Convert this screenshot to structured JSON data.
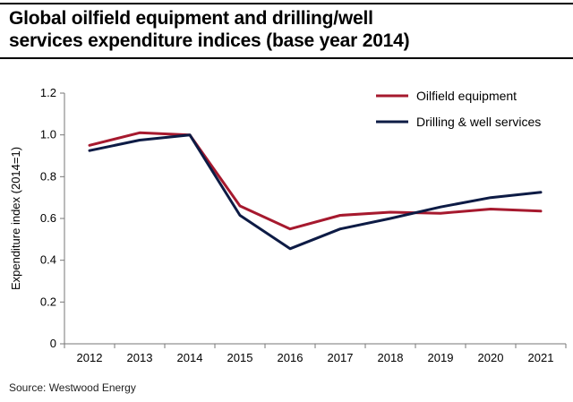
{
  "title": {
    "line1": "Global oilfield equipment and drilling/well",
    "line2": "services expenditure indices (base year 2014)"
  },
  "source": "Source: Westwood Energy",
  "colors": {
    "oilfield": "#a6192e",
    "drilling": "#0d1b45",
    "axis": "#777777"
  },
  "chart_data": {
    "type": "line",
    "title": "Global oilfield equipment and drilling/well services expenditure indices (base year 2014)",
    "xlabel": "",
    "ylabel": "Expenditure index (2014=1)",
    "categories": [
      "2012",
      "2013",
      "2014",
      "2015",
      "2016",
      "2017",
      "2018",
      "2019",
      "2020",
      "2021"
    ],
    "ylim": [
      0,
      1.2
    ],
    "yticks": [
      "0",
      "0.2",
      "0.4",
      "0.6",
      "0.8",
      "1.0",
      "1.2"
    ],
    "grid": false,
    "legend": "top-right",
    "series": [
      {
        "name": "Oilfield equipment",
        "color": "#a6192e",
        "values": [
          0.95,
          1.01,
          1.0,
          0.66,
          0.55,
          0.615,
          0.63,
          0.625,
          0.645,
          0.635
        ]
      },
      {
        "name": "Drilling & well services",
        "color": "#0d1b45",
        "values": [
          0.925,
          0.975,
          1.0,
          0.615,
          0.455,
          0.55,
          0.6,
          0.655,
          0.7,
          0.725
        ]
      }
    ]
  }
}
